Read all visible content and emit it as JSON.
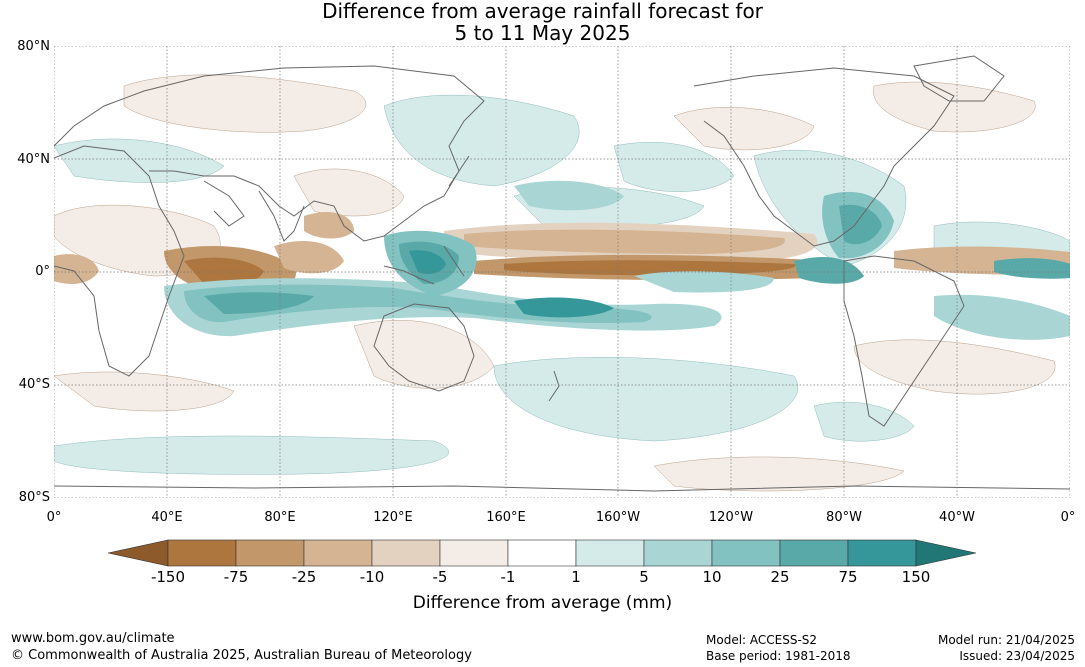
{
  "title_line1": "Difference from average rainfall forecast for",
  "title_line2": "5 to 11 May 2025",
  "lat_labels": [
    "80°N",
    "40°N",
    "0°",
    "40°S",
    "80°S"
  ],
  "lon_labels": [
    "0°",
    "40°E",
    "80°E",
    "120°E",
    "160°E",
    "160°W",
    "120°W",
    "80°W",
    "40°W",
    "0°"
  ],
  "colorbar": {
    "title": "Difference from average (mm)",
    "tick_labels": [
      "-150",
      "-75",
      "-25",
      "-10",
      "-5",
      "-1",
      "1",
      "5",
      "10",
      "25",
      "75",
      "150"
    ],
    "colors": [
      "#8c5a2b",
      "#ad763e",
      "#c2976a",
      "#d4b493",
      "#e4d2c0",
      "#f4ece6",
      "#ffffff",
      "#d5ebea",
      "#a9d6d5",
      "#82c2c1",
      "#5aa9a9",
      "#35979a",
      "#217676"
    ]
  },
  "footer": {
    "url": "www.bom.gov.au/climate",
    "copyright": "© Commonwealth of Australia 2025, Australian Bureau of Meteorology",
    "model": "Model: ACCESS-S2",
    "base_period": "Base period: 1981-2018",
    "model_run": "Model run: 21/04/2025",
    "issued": "Issued: 23/04/2025"
  }
}
